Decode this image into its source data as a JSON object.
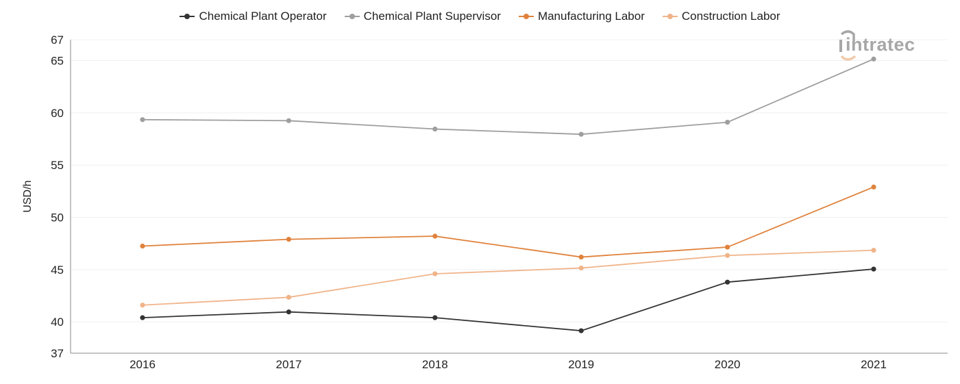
{
  "logo_text": "intratec",
  "chart_data": {
    "type": "line",
    "title": "",
    "xlabel": "",
    "ylabel": "USD/h",
    "ylim": [
      37,
      67
    ],
    "yticks": [
      37,
      40,
      45,
      50,
      55,
      60,
      65,
      67
    ],
    "categories": [
      "2016",
      "2017",
      "2018",
      "2019",
      "2020",
      "2021"
    ],
    "grid": true,
    "legend_position": "top",
    "series": [
      {
        "name": "Chemical Plant Operator",
        "color": "#333333",
        "values": [
          40.4,
          40.95,
          40.4,
          39.15,
          43.8,
          45.05
        ]
      },
      {
        "name": "Chemical Plant Supervisor",
        "color": "#9e9e9e",
        "values": [
          59.35,
          59.25,
          58.45,
          57.95,
          59.1,
          65.15
        ]
      },
      {
        "name": "Manufacturing Labor",
        "color": "#e0823c",
        "values": [
          47.25,
          47.9,
          48.2,
          46.2,
          47.15,
          52.9
        ]
      },
      {
        "name": "Construction Labor",
        "color": "#f0b48a",
        "values": [
          41.6,
          42.35,
          44.6,
          45.15,
          46.35,
          46.85
        ]
      }
    ]
  }
}
